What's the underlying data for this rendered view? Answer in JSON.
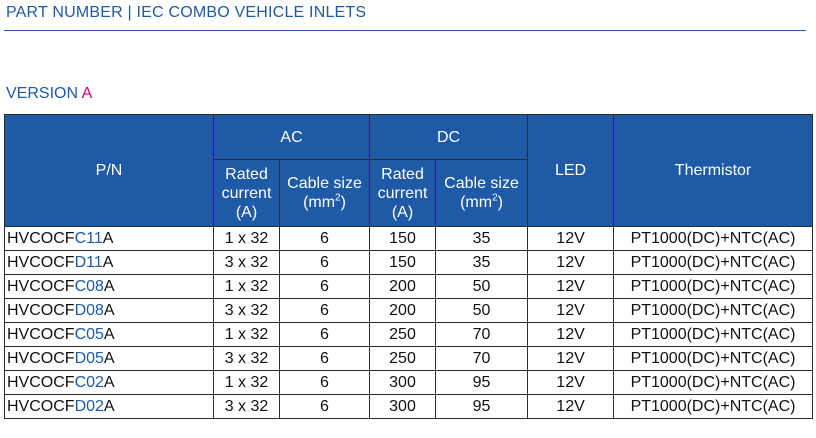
{
  "header": {
    "title": "PART NUMBER | IEC COMBO VEHICLE INLETS",
    "version_label": "VERSION",
    "version_value": "A"
  },
  "table": {
    "col_pn": "P/N",
    "group_ac": "AC",
    "group_dc": "DC",
    "col_led": "LED",
    "col_thermistor": "Thermistor",
    "ac_rated_line1": "Rated",
    "ac_rated_line2": "current",
    "ac_rated_line3": "(A)",
    "ac_cable_line1": "Cable size",
    "ac_cable_line2": "(mm",
    "ac_cable_sup": "2",
    "ac_cable_close": ")",
    "dc_rated_line1": "Rated",
    "dc_rated_line2": "current",
    "dc_rated_line3": "(A)",
    "dc_cable_line1": "Cable size",
    "dc_cable_line2": "(mm",
    "dc_cable_sup": "2",
    "dc_cable_close": ")",
    "rows": [
      {
        "pn_prefix": "HVCOCF",
        "pn_code": "C11",
        "pn_suffix": "A",
        "ac_current": "1 x 32",
        "ac_cable": "6",
        "dc_current": "150",
        "dc_cable": "35",
        "led": "12V",
        "thermistor": "PT1000(DC)+NTC(AC)"
      },
      {
        "pn_prefix": "HVCOCF",
        "pn_code": "D11",
        "pn_suffix": "A",
        "ac_current": "3 x 32",
        "ac_cable": "6",
        "dc_current": "150",
        "dc_cable": "35",
        "led": "12V",
        "thermistor": "PT1000(DC)+NTC(AC)"
      },
      {
        "pn_prefix": "HVCOCF",
        "pn_code": "C08",
        "pn_suffix": "A",
        "ac_current": "1 x 32",
        "ac_cable": "6",
        "dc_current": "200",
        "dc_cable": "50",
        "led": "12V",
        "thermistor": "PT1000(DC)+NTC(AC)"
      },
      {
        "pn_prefix": "HVCOCF",
        "pn_code": "D08",
        "pn_suffix": "A",
        "ac_current": "3 x 32",
        "ac_cable": "6",
        "dc_current": "200",
        "dc_cable": "50",
        "led": "12V",
        "thermistor": "PT1000(DC)+NTC(AC)"
      },
      {
        "pn_prefix": "HVCOCF",
        "pn_code": "C05",
        "pn_suffix": "A",
        "ac_current": "1 x 32",
        "ac_cable": "6",
        "dc_current": "250",
        "dc_cable": "70",
        "led": "12V",
        "thermistor": "PT1000(DC)+NTC(AC)"
      },
      {
        "pn_prefix": "HVCOCF",
        "pn_code": "D05",
        "pn_suffix": "A",
        "ac_current": "3 x 32",
        "ac_cable": "6",
        "dc_current": "250",
        "dc_cable": "70",
        "led": "12V",
        "thermistor": "PT1000(DC)+NTC(AC)"
      },
      {
        "pn_prefix": "HVCOCF",
        "pn_code": "C02",
        "pn_suffix": "A",
        "ac_current": "1 x 32",
        "ac_cable": "6",
        "dc_current": "300",
        "dc_cable": "95",
        "led": "12V",
        "thermistor": "PT1000(DC)+NTC(AC)"
      },
      {
        "pn_prefix": "HVCOCF",
        "pn_code": "D02",
        "pn_suffix": "A",
        "ac_current": "3 x 32",
        "ac_cable": "6",
        "dc_current": "300",
        "dc_cable": "95",
        "led": "12V",
        "thermistor": "PT1000(DC)+NTC(AC)"
      }
    ]
  },
  "colors": {
    "brand_blue": "#1f5aa6",
    "accent_magenta": "#e0006e",
    "border": "#2c2c2c"
  }
}
